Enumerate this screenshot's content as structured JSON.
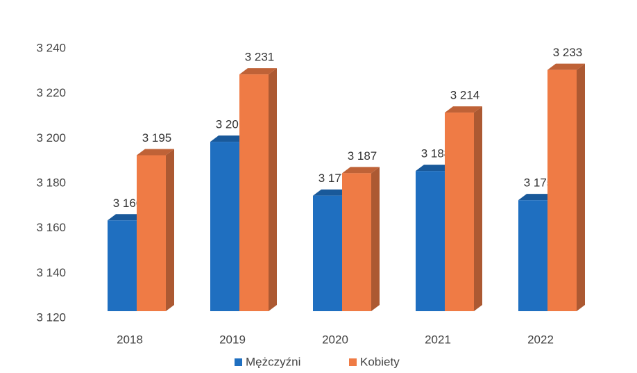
{
  "chart_data": {
    "type": "bar",
    "categories": [
      "2018",
      "2019",
      "2020",
      "2021",
      "2022"
    ],
    "series": [
      {
        "name": "Mężczyźni",
        "color": "#1f6fc0",
        "values": [
          3166,
          3201,
          3177,
          3188,
          3175
        ],
        "value_labels": [
          "3 166",
          "3 201",
          "3 177",
          "3 188",
          "3 175"
        ]
      },
      {
        "name": "Kobiety",
        "color": "#ef7b45",
        "values": [
          3195,
          3231,
          3187,
          3214,
          3233
        ],
        "value_labels": [
          "3 195",
          "3 231",
          "3 187",
          "3 214",
          "3 233"
        ]
      }
    ],
    "ylim": [
      3120,
      3240
    ],
    "yticks": [
      {
        "value": 3120,
        "label": "3 120"
      },
      {
        "value": 3140,
        "label": "3 140"
      },
      {
        "value": 3160,
        "label": "3 160"
      },
      {
        "value": 3180,
        "label": "3 180"
      },
      {
        "value": 3200,
        "label": "3 200"
      },
      {
        "value": 3220,
        "label": "3 220"
      },
      {
        "value": 3240,
        "label": "3 240"
      }
    ],
    "legend": "bottom"
  }
}
